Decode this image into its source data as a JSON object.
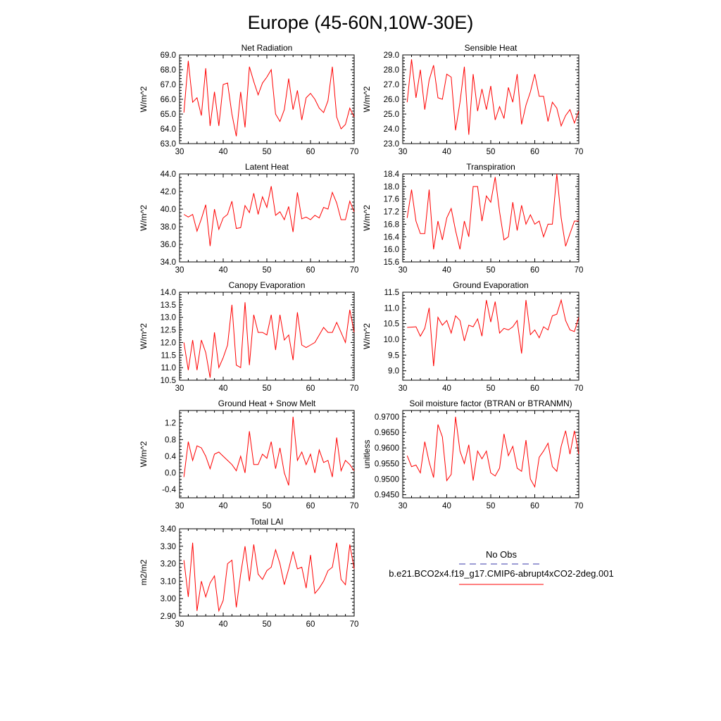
{
  "figure": {
    "title": "Europe (45-60N,10W-30E)",
    "legend": {
      "obs_label": "No Obs",
      "obs_color": "#3a3aa8",
      "model_label": "b.e21.BCO2x4.f19_g17.CMIP6-abrupt4xCO2-2deg.001",
      "model_color": "#ff0000"
    }
  },
  "chart_data": [
    {
      "type": "line",
      "title": "Net Radiation",
      "ylabel": "W/m^2",
      "xlim": [
        30,
        70
      ],
      "xticks": [
        30,
        40,
        50,
        60,
        70
      ],
      "ylim": [
        63.0,
        69.0
      ],
      "yticks": [
        "63.0",
        "64.0",
        "65.0",
        "66.0",
        "67.0",
        "68.0",
        "69.0"
      ],
      "series": [
        {
          "x": [
            31,
            32,
            33,
            34,
            35,
            36,
            37,
            38,
            39,
            40,
            41,
            42,
            43,
            44,
            45,
            46,
            47,
            48,
            49,
            50,
            51,
            52,
            53,
            54,
            55,
            56,
            57,
            58,
            59,
            60,
            61,
            62,
            63,
            64,
            65,
            66,
            67,
            68,
            69,
            70
          ],
          "y": [
            65.1,
            68.6,
            65.8,
            66.1,
            64.9,
            68.1,
            64.2,
            66.5,
            64.2,
            67.0,
            67.1,
            65.0,
            63.5,
            66.5,
            64.1,
            68.2,
            67.2,
            66.3,
            67.1,
            67.5,
            68.0,
            65.0,
            64.5,
            65.3,
            67.4,
            65.3,
            66.6,
            64.6,
            66.1,
            66.4,
            66.0,
            65.4,
            65.1,
            65.9,
            68.2,
            64.8,
            64.0,
            64.3,
            65.4,
            64.8
          ]
        }
      ]
    },
    {
      "type": "line",
      "title": "Sensible Heat",
      "ylabel": "W/m^2",
      "xlim": [
        30,
        70
      ],
      "xticks": [
        30,
        40,
        50,
        60,
        70
      ],
      "ylim": [
        23.0,
        29.0
      ],
      "yticks": [
        "23.0",
        "24.0",
        "25.0",
        "26.0",
        "27.0",
        "28.0",
        "29.0"
      ],
      "series": [
        {
          "x": [
            31,
            32,
            33,
            34,
            35,
            36,
            37,
            38,
            39,
            40,
            41,
            42,
            43,
            44,
            45,
            46,
            47,
            48,
            49,
            50,
            51,
            52,
            53,
            54,
            55,
            56,
            57,
            58,
            59,
            60,
            61,
            62,
            63,
            64,
            65,
            66,
            67,
            68,
            69,
            70
          ],
          "y": [
            25.8,
            28.7,
            26.1,
            28.0,
            25.3,
            27.3,
            28.3,
            26.1,
            26.0,
            27.7,
            27.5,
            23.9,
            25.8,
            28.2,
            23.6,
            27.7,
            25.2,
            26.7,
            25.3,
            26.9,
            24.6,
            25.5,
            24.7,
            26.8,
            25.8,
            27.7,
            24.3,
            25.6,
            26.5,
            27.7,
            26.2,
            26.2,
            24.5,
            25.8,
            25.4,
            24.2,
            24.9,
            25.3,
            24.4,
            25.2
          ]
        }
      ]
    },
    {
      "type": "line",
      "title": "Latent Heat",
      "ylabel": "W/m^2",
      "xlim": [
        30,
        70
      ],
      "xticks": [
        30,
        40,
        50,
        60,
        70
      ],
      "ylim": [
        34.0,
        44.0
      ],
      "yticks": [
        "34.0",
        "36.0",
        "38.0",
        "40.0",
        "42.0",
        "44.0"
      ],
      "series": [
        {
          "x": [
            31,
            32,
            33,
            34,
            35,
            36,
            37,
            38,
            39,
            40,
            41,
            42,
            43,
            44,
            45,
            46,
            47,
            48,
            49,
            50,
            51,
            52,
            53,
            54,
            55,
            56,
            57,
            58,
            59,
            60,
            61,
            62,
            63,
            64,
            65,
            66,
            67,
            68,
            69,
            70
          ],
          "y": [
            39.4,
            39.1,
            39.4,
            37.5,
            38.9,
            40.5,
            35.8,
            40.0,
            37.7,
            39.0,
            39.4,
            40.9,
            37.8,
            37.9,
            40.4,
            39.6,
            41.8,
            39.4,
            41.4,
            40.2,
            42.6,
            39.3,
            39.7,
            38.8,
            40.3,
            37.4,
            41.9,
            38.9,
            39.1,
            38.8,
            39.3,
            39.0,
            40.2,
            40.0,
            41.9,
            40.7,
            38.8,
            38.8,
            40.9,
            39.7
          ]
        }
      ]
    },
    {
      "type": "line",
      "title": "Transpiration",
      "ylabel": "W/m^2",
      "xlim": [
        30,
        70
      ],
      "xticks": [
        30,
        40,
        50,
        60,
        70
      ],
      "ylim": [
        15.6,
        18.4
      ],
      "yticks": [
        "15.6",
        "16.0",
        "16.4",
        "16.8",
        "17.2",
        "17.6",
        "18.0",
        "18.4"
      ],
      "series": [
        {
          "x": [
            31,
            32,
            33,
            34,
            35,
            36,
            37,
            38,
            39,
            40,
            41,
            42,
            43,
            44,
            45,
            46,
            47,
            48,
            49,
            50,
            51,
            52,
            53,
            54,
            55,
            56,
            57,
            58,
            59,
            60,
            61,
            62,
            63,
            64,
            65,
            66,
            67,
            68,
            69,
            70
          ],
          "y": [
            17.0,
            17.9,
            16.9,
            16.5,
            16.5,
            17.9,
            16.0,
            16.9,
            16.3,
            17.0,
            17.3,
            16.6,
            16.0,
            16.9,
            16.4,
            18.0,
            18.0,
            16.9,
            17.7,
            17.5,
            18.3,
            17.2,
            16.3,
            16.4,
            17.5,
            16.6,
            17.4,
            16.8,
            17.1,
            16.8,
            16.9,
            16.4,
            16.8,
            16.8,
            18.4,
            17.0,
            16.1,
            16.5,
            16.9,
            16.9
          ]
        }
      ]
    },
    {
      "type": "line",
      "title": "Canopy Evaporation",
      "ylabel": "W/m^2",
      "xlim": [
        30,
        70
      ],
      "xticks": [
        30,
        40,
        50,
        60,
        70
      ],
      "ylim": [
        10.5,
        14.0
      ],
      "yticks": [
        "10.5",
        "11.0",
        "11.5",
        "12.0",
        "12.5",
        "13.0",
        "13.5",
        "14.0"
      ],
      "series": [
        {
          "x": [
            31,
            32,
            33,
            34,
            35,
            36,
            37,
            38,
            39,
            40,
            41,
            42,
            43,
            44,
            45,
            46,
            47,
            48,
            49,
            50,
            51,
            52,
            53,
            54,
            55,
            56,
            57,
            58,
            59,
            60,
            61,
            62,
            63,
            64,
            65,
            66,
            67,
            68,
            69,
            70
          ],
          "y": [
            12.0,
            10.9,
            12.1,
            10.9,
            12.1,
            11.6,
            10.6,
            12.4,
            11.0,
            11.4,
            11.9,
            13.5,
            11.1,
            11.0,
            13.6,
            11.1,
            13.1,
            12.4,
            12.4,
            12.3,
            13.1,
            11.7,
            13.1,
            12.1,
            12.3,
            11.3,
            13.2,
            11.9,
            11.8,
            11.9,
            12.0,
            12.3,
            12.6,
            12.4,
            12.4,
            12.8,
            12.4,
            12.0,
            13.3,
            12.4
          ]
        }
      ]
    },
    {
      "type": "line",
      "title": "Ground Evaporation",
      "ylabel": "W/m^2",
      "xlim": [
        30,
        70
      ],
      "xticks": [
        30,
        40,
        50,
        60,
        70
      ],
      "ylim": [
        8.7,
        11.5
      ],
      "yticks": [
        "9.0",
        "9.5",
        "10.0",
        "10.5",
        "11.0",
        "11.5"
      ],
      "series": [
        {
          "x": [
            31,
            32,
            33,
            34,
            35,
            36,
            37,
            38,
            39,
            40,
            41,
            42,
            43,
            44,
            45,
            46,
            47,
            48,
            49,
            50,
            51,
            52,
            53,
            54,
            55,
            56,
            57,
            58,
            59,
            60,
            61,
            62,
            63,
            64,
            65,
            66,
            67,
            68,
            69,
            70
          ],
          "y": [
            10.38,
            10.39,
            10.4,
            10.1,
            10.35,
            11.0,
            9.15,
            10.7,
            10.45,
            10.6,
            10.2,
            10.75,
            10.6,
            9.95,
            10.45,
            10.4,
            10.65,
            10.1,
            11.25,
            10.55,
            11.2,
            10.2,
            10.35,
            10.3,
            10.4,
            10.6,
            9.55,
            11.25,
            10.15,
            10.3,
            10.05,
            10.4,
            10.3,
            10.75,
            10.8,
            11.25,
            10.6,
            10.3,
            10.25,
            10.7
          ]
        }
      ]
    },
    {
      "type": "line",
      "title": "Ground Heat + Snow Melt",
      "ylabel": "W/m^2",
      "xlim": [
        30,
        70
      ],
      "xticks": [
        30,
        40,
        50,
        60,
        70
      ],
      "ylim": [
        -0.6,
        1.5
      ],
      "yticks": [
        "-0.4",
        "0.0",
        "0.4",
        "0.8",
        "1.2"
      ],
      "series": [
        {
          "x": [
            31,
            32,
            33,
            34,
            35,
            36,
            37,
            38,
            39,
            40,
            41,
            42,
            43,
            44,
            45,
            46,
            47,
            48,
            49,
            50,
            51,
            52,
            53,
            54,
            55,
            56,
            57,
            58,
            59,
            60,
            61,
            62,
            63,
            64,
            65,
            66,
            67,
            68,
            69,
            70
          ],
          "y": [
            -0.1,
            0.75,
            0.3,
            0.65,
            0.6,
            0.4,
            0.1,
            0.45,
            0.5,
            0.4,
            0.3,
            0.2,
            0.05,
            0.4,
            0.0,
            1.0,
            0.2,
            0.2,
            0.45,
            0.35,
            0.75,
            0.1,
            0.6,
            0.0,
            -0.3,
            1.35,
            0.3,
            0.5,
            0.2,
            0.45,
            0.0,
            0.55,
            0.25,
            0.3,
            -0.1,
            0.85,
            0.05,
            0.3,
            0.2,
            0.05
          ]
        }
      ]
    },
    {
      "type": "line",
      "title": "Soil moisture factor (BTRAN or BTRANMN)",
      "ylabel": "unitless",
      "xlim": [
        30,
        70
      ],
      "xticks": [
        30,
        40,
        50,
        60,
        70
      ],
      "ylim": [
        0.944,
        0.972
      ],
      "yticks": [
        "0.9450",
        "0.9500",
        "0.9550",
        "0.9600",
        "0.9650",
        "0.9700"
      ],
      "series": [
        {
          "x": [
            31,
            32,
            33,
            34,
            35,
            36,
            37,
            38,
            39,
            40,
            41,
            42,
            43,
            44,
            45,
            46,
            47,
            48,
            49,
            50,
            51,
            52,
            53,
            54,
            55,
            56,
            57,
            58,
            59,
            60,
            61,
            62,
            63,
            64,
            65,
            66,
            67,
            68,
            69,
            70
          ],
          "y": [
            0.9575,
            0.954,
            0.9545,
            0.952,
            0.962,
            0.9555,
            0.9505,
            0.9675,
            0.9635,
            0.9495,
            0.9515,
            0.97,
            0.959,
            0.955,
            0.961,
            0.9495,
            0.959,
            0.9565,
            0.959,
            0.952,
            0.951,
            0.9535,
            0.9645,
            0.9575,
            0.9605,
            0.9535,
            0.9525,
            0.9625,
            0.95,
            0.9475,
            0.957,
            0.959,
            0.9615,
            0.954,
            0.9525,
            0.9605,
            0.9655,
            0.958,
            0.9655,
            0.958
          ]
        }
      ]
    },
    {
      "type": "line",
      "title": "Total LAI",
      "ylabel": "m2/m2",
      "xlim": [
        30,
        70
      ],
      "xticks": [
        30,
        40,
        50,
        60,
        70
      ],
      "ylim": [
        2.9,
        3.4
      ],
      "yticks": [
        "2.90",
        "3.00",
        "3.10",
        "3.20",
        "3.30",
        "3.40"
      ],
      "series": [
        {
          "x": [
            31,
            32,
            33,
            34,
            35,
            36,
            37,
            38,
            39,
            40,
            41,
            42,
            43,
            44,
            45,
            46,
            47,
            48,
            49,
            50,
            51,
            52,
            53,
            54,
            55,
            56,
            57,
            58,
            59,
            60,
            61,
            62,
            63,
            64,
            65,
            66,
            67,
            68,
            69,
            70
          ],
          "y": [
            3.22,
            3.01,
            3.32,
            2.93,
            3.1,
            3.01,
            3.09,
            3.13,
            2.93,
            2.99,
            3.2,
            3.22,
            2.95,
            3.14,
            3.3,
            3.1,
            3.31,
            3.14,
            3.11,
            3.16,
            3.18,
            3.28,
            3.2,
            3.08,
            3.17,
            3.27,
            3.17,
            3.18,
            3.06,
            3.25,
            3.03,
            3.06,
            3.1,
            3.16,
            3.18,
            3.32,
            3.11,
            3.08,
            3.31,
            3.17
          ]
        }
      ]
    }
  ]
}
